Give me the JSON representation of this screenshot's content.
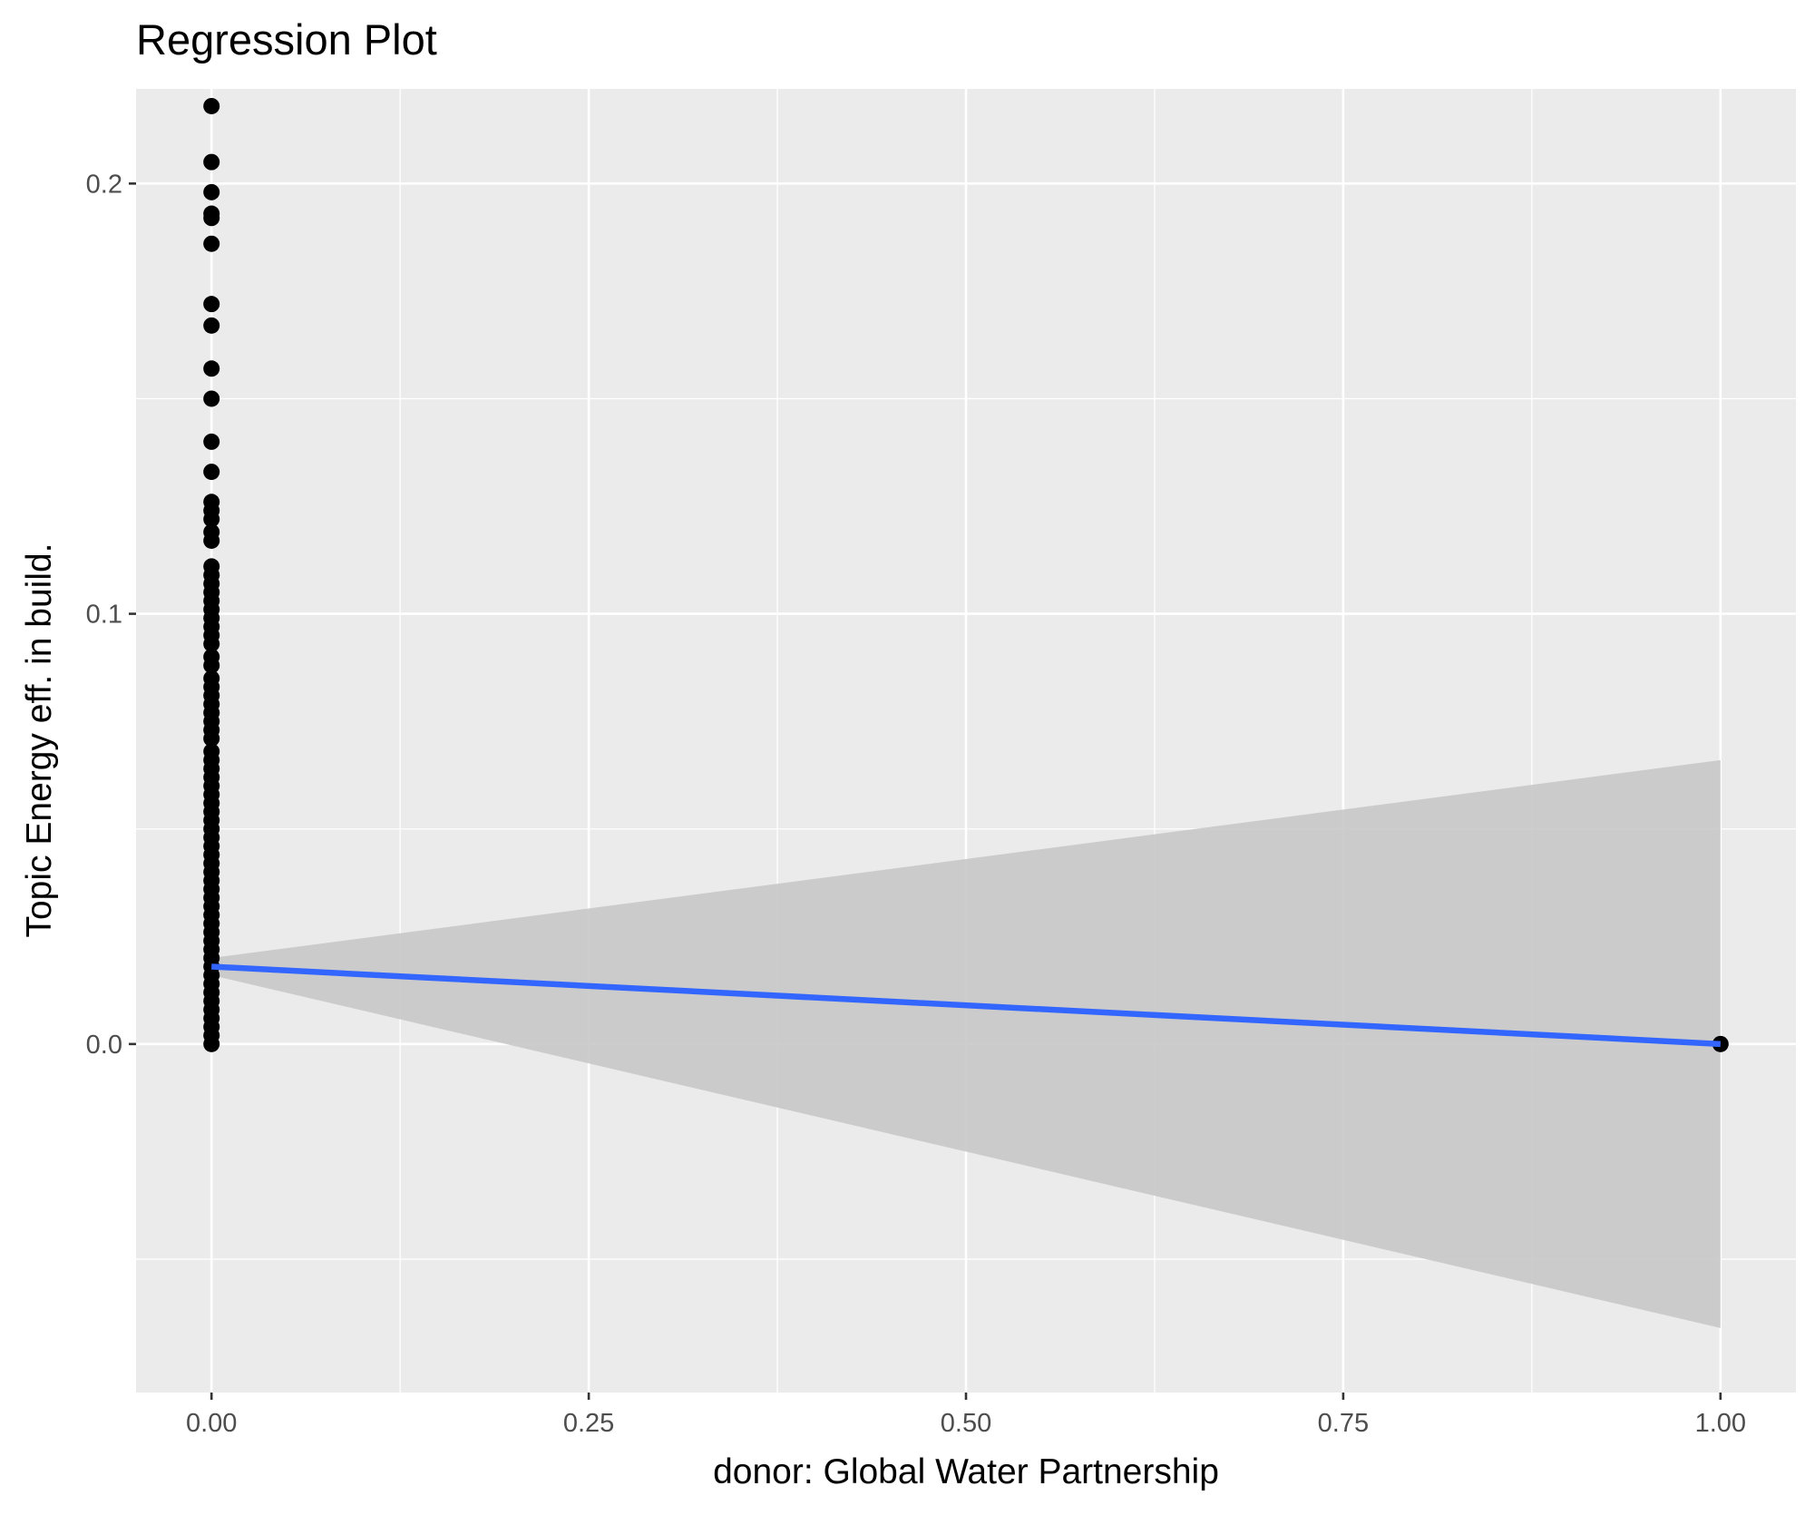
{
  "chart_data": {
    "type": "scatter",
    "title": "Regression Plot",
    "xlabel": "donor: Global Water Partnership",
    "ylabel": "Topic Energy eff. in build.",
    "xlim": [
      -0.05,
      1.05
    ],
    "ylim": [
      -0.081,
      0.222
    ],
    "x_ticks": [
      0.0,
      0.25,
      0.5,
      0.75,
      1.0
    ],
    "x_tick_labels": [
      "0.00",
      "0.25",
      "0.50",
      "0.75",
      "1.00"
    ],
    "y_ticks": [
      0.0,
      0.1,
      0.2
    ],
    "y_tick_labels": [
      "0.0",
      "0.1",
      "0.2"
    ],
    "grid": true,
    "legend": "none",
    "colors": {
      "panel": "#ebebeb",
      "grid": "#ffffff",
      "points": "#000000",
      "fit_line": "#3366ff",
      "ribbon": "#c8c8c8"
    },
    "points": [
      {
        "x": 0,
        "y": 0.218
      },
      {
        "x": 0,
        "y": 0.205
      },
      {
        "x": 0,
        "y": 0.198
      },
      {
        "x": 0,
        "y": 0.193
      },
      {
        "x": 0,
        "y": 0.192
      },
      {
        "x": 0,
        "y": 0.186
      },
      {
        "x": 0,
        "y": 0.172
      },
      {
        "x": 0,
        "y": 0.167
      },
      {
        "x": 0,
        "y": 0.157
      },
      {
        "x": 0,
        "y": 0.15
      },
      {
        "x": 0,
        "y": 0.14
      },
      {
        "x": 0,
        "y": 0.133
      },
      {
        "x": 0,
        "y": 0.126
      },
      {
        "x": 0,
        "y": 0.124
      },
      {
        "x": 0,
        "y": 0.122
      },
      {
        "x": 0,
        "y": 0.119
      },
      {
        "x": 0,
        "y": 0.117
      },
      {
        "x": 0,
        "y": 0.111
      },
      {
        "x": 0,
        "y": 0.109
      },
      {
        "x": 0,
        "y": 0.107
      },
      {
        "x": 0,
        "y": 0.105
      },
      {
        "x": 0,
        "y": 0.103
      },
      {
        "x": 0,
        "y": 0.101
      },
      {
        "x": 0,
        "y": 0.099
      },
      {
        "x": 0,
        "y": 0.097
      },
      {
        "x": 0,
        "y": 0.095
      },
      {
        "x": 0,
        "y": 0.093
      },
      {
        "x": 0,
        "y": 0.09
      },
      {
        "x": 0,
        "y": 0.088
      },
      {
        "x": 0,
        "y": 0.085
      },
      {
        "x": 0,
        "y": 0.083
      },
      {
        "x": 0,
        "y": 0.081
      },
      {
        "x": 0,
        "y": 0.079
      },
      {
        "x": 0,
        "y": 0.077
      },
      {
        "x": 0,
        "y": 0.075
      },
      {
        "x": 0,
        "y": 0.073
      },
      {
        "x": 0,
        "y": 0.071
      },
      {
        "x": 0,
        "y": 0.068
      },
      {
        "x": 0,
        "y": 0.066
      },
      {
        "x": 0,
        "y": 0.064
      },
      {
        "x": 0,
        "y": 0.062
      },
      {
        "x": 0,
        "y": 0.06
      },
      {
        "x": 0,
        "y": 0.058
      },
      {
        "x": 0,
        "y": 0.056
      },
      {
        "x": 0,
        "y": 0.054
      },
      {
        "x": 0,
        "y": 0.052
      },
      {
        "x": 0,
        "y": 0.05
      },
      {
        "x": 0,
        "y": 0.048
      },
      {
        "x": 0,
        "y": 0.046
      },
      {
        "x": 0,
        "y": 0.044
      },
      {
        "x": 0,
        "y": 0.042
      },
      {
        "x": 0,
        "y": 0.04
      },
      {
        "x": 0,
        "y": 0.038
      },
      {
        "x": 0,
        "y": 0.036
      },
      {
        "x": 0,
        "y": 0.034
      },
      {
        "x": 0,
        "y": 0.032
      },
      {
        "x": 0,
        "y": 0.03
      },
      {
        "x": 0,
        "y": 0.028
      },
      {
        "x": 0,
        "y": 0.026
      },
      {
        "x": 0,
        "y": 0.024
      },
      {
        "x": 0,
        "y": 0.022
      },
      {
        "x": 0,
        "y": 0.02
      },
      {
        "x": 0,
        "y": 0.018
      },
      {
        "x": 0,
        "y": 0.016
      },
      {
        "x": 0,
        "y": 0.014
      },
      {
        "x": 0,
        "y": 0.012
      },
      {
        "x": 0,
        "y": 0.01
      },
      {
        "x": 0,
        "y": 0.008
      },
      {
        "x": 0,
        "y": 0.006
      },
      {
        "x": 0,
        "y": 0.004
      },
      {
        "x": 0,
        "y": 0.002
      },
      {
        "x": 0,
        "y": 0.0
      },
      {
        "x": 1,
        "y": 0.0
      }
    ],
    "fit_line": [
      {
        "x": 0,
        "y": 0.018
      },
      {
        "x": 1,
        "y": 0.0
      }
    ],
    "confidence_band": [
      {
        "x": 0,
        "lower": 0.016,
        "upper": 0.02
      },
      {
        "x": 1,
        "lower": -0.066,
        "upper": 0.066
      }
    ]
  }
}
